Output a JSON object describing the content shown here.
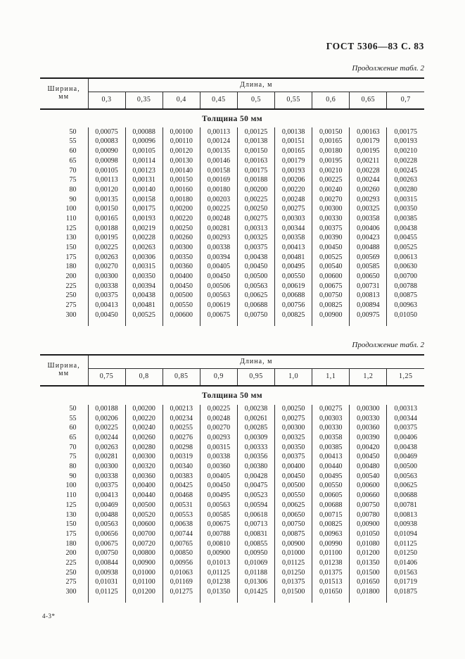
{
  "page": {
    "header_right": "ГОСТ 5306—83 С. 83",
    "footer_left": "4-3*"
  },
  "tables": [
    {
      "continuation": "Продолжение табл. 2",
      "corner_line1": "Ширина,",
      "corner_line2": "мм",
      "span_header": "Длина, м",
      "section_title": "Толщина 50 мм",
      "columns": [
        "0,3",
        "0,35",
        "0,4",
        "0,45",
        "0,5",
        "0,55",
        "0,6",
        "0,65",
        "0,7"
      ],
      "rows": [
        {
          "width": "50",
          "values": [
            "0,00075",
            "0,00088",
            "0,00100",
            "0,00113",
            "0,00125",
            "0,00138",
            "0,00150",
            "0,00163",
            "0,00175"
          ]
        },
        {
          "width": "55",
          "values": [
            "0,00083",
            "0,00096",
            "0,00110",
            "0,00124",
            "0,00138",
            "0,00151",
            "0,00165",
            "0,00179",
            "0,00193"
          ]
        },
        {
          "width": "60",
          "values": [
            "0,00090",
            "0,00105",
            "0,00120",
            "0,00135",
            "0,00150",
            "0,00165",
            "0,00180",
            "0,00195",
            "0,00210"
          ]
        },
        {
          "width": "65",
          "values": [
            "0,00098",
            "0,00114",
            "0,00130",
            "0,00146",
            "0,00163",
            "0,00179",
            "0,00195",
            "0,00211",
            "0,00228"
          ]
        },
        {
          "width": "70",
          "values": [
            "0,00105",
            "0,00123",
            "0,00140",
            "0,00158",
            "0,00175",
            "0,00193",
            "0,00210",
            "0,00228",
            "0,00245"
          ]
        },
        {
          "width": "75",
          "values": [
            "0,00113",
            "0,00131",
            "0,00150",
            "0,00169",
            "0,00188",
            "0,00206",
            "0,00225",
            "0,00244",
            "0,00263"
          ]
        },
        {
          "width": "80",
          "values": [
            "0,00120",
            "0,00140",
            "0,00160",
            "0,00180",
            "0,00200",
            "0,00220",
            "0,00240",
            "0,00260",
            "0,00280"
          ]
        },
        {
          "width": "90",
          "values": [
            "0,00135",
            "0,00158",
            "0,00180",
            "0,00203",
            "0,00225",
            "0,00248",
            "0,00270",
            "0,00293",
            "0,00315"
          ]
        },
        {
          "width": "100",
          "values": [
            "0,00150",
            "0,00175",
            "0,00200",
            "0,00225",
            "0,00250",
            "0,00275",
            "0,00300",
            "0,00325",
            "0,00350"
          ]
        },
        {
          "width": "110",
          "values": [
            "0,00165",
            "0,00193",
            "0,00220",
            "0,00248",
            "0,00275",
            "0,00303",
            "0,00330",
            "0,00358",
            "0,00385"
          ]
        },
        {
          "width": "125",
          "values": [
            "0,00188",
            "0,00219",
            "0,00250",
            "0,00281",
            "0,00313",
            "0,00344",
            "0,00375",
            "0,00406",
            "0,00438"
          ]
        },
        {
          "width": "130",
          "values": [
            "0,00195",
            "0,00228",
            "0,00260",
            "0,00293",
            "0,00325",
            "0,00358",
            "0,00390",
            "0,00423",
            "0,00455"
          ]
        },
        {
          "width": "150",
          "values": [
            "0,00225",
            "0,00263",
            "0,00300",
            "0,00338",
            "0,00375",
            "0,00413",
            "0,00450",
            "0,00488",
            "0,00525"
          ]
        },
        {
          "width": "175",
          "values": [
            "0,00263",
            "0,00306",
            "0,00350",
            "0,00394",
            "0,00438",
            "0,00481",
            "0,00525",
            "0,00569",
            "0,00613"
          ]
        },
        {
          "width": "180",
          "values": [
            "0,00270",
            "0,00315",
            "0,00360",
            "0,00405",
            "0,00450",
            "0,00495",
            "0,00540",
            "0,00585",
            "0,00630"
          ]
        },
        {
          "width": "200",
          "values": [
            "0,00300",
            "0,00350",
            "0,00400",
            "0,00450",
            "0,00500",
            "0,00550",
            "0,00600",
            "0,00650",
            "0,00700"
          ]
        },
        {
          "width": "225",
          "values": [
            "0,00338",
            "0,00394",
            "0,00450",
            "0,00506",
            "0,00563",
            "0,00619",
            "0,00675",
            "0,00731",
            "0,00788"
          ]
        },
        {
          "width": "250",
          "values": [
            "0,00375",
            "0,00438",
            "0,00500",
            "0,00563",
            "0,00625",
            "0,00688",
            "0,00750",
            "0,00813",
            "0,00875"
          ]
        },
        {
          "width": "275",
          "values": [
            "0,00413",
            "0,00481",
            "0,00550",
            "0,00619",
            "0,00688",
            "0,00756",
            "0,00825",
            "0,00894",
            "0,00963"
          ]
        },
        {
          "width": "300",
          "values": [
            "0,00450",
            "0,00525",
            "0,00600",
            "0,00675",
            "0,00750",
            "0,00825",
            "0,00900",
            "0,00975",
            "0,01050"
          ]
        }
      ]
    },
    {
      "continuation": "Продолжение табл. 2",
      "corner_line1": "Ширина,",
      "corner_line2": "мм",
      "span_header": "Длина, м",
      "section_title": "Толщина 50 мм",
      "columns": [
        "0,75",
        "0,8",
        "0,85",
        "0,9",
        "0,95",
        "1,0",
        "1,1",
        "1,2",
        "1,25"
      ],
      "rows": [
        {
          "width": "50",
          "values": [
            "0,00188",
            "0,00200",
            "0,00213",
            "0,00225",
            "0,00238",
            "0,00250",
            "0,00275",
            "0,00300",
            "0,00313"
          ]
        },
        {
          "width": "55",
          "values": [
            "0,00206",
            "0,00220",
            "0,00234",
            "0,00248",
            "0,00261",
            "0,00275",
            "0,00303",
            "0,00330",
            "0,00344"
          ]
        },
        {
          "width": "60",
          "values": [
            "0,00225",
            "0,00240",
            "0,00255",
            "0,00270",
            "0,00285",
            "0,00300",
            "0,00330",
            "0,00360",
            "0,00375"
          ]
        },
        {
          "width": "65",
          "values": [
            "0,00244",
            "0,00260",
            "0,00276",
            "0,00293",
            "0,00309",
            "0,00325",
            "0,00358",
            "0,00390",
            "0,00406"
          ]
        },
        {
          "width": "70",
          "values": [
            "0,00263",
            "0,00280",
            "0,00298",
            "0,00315",
            "0,00333",
            "0,00350",
            "0,00385",
            "0,00420",
            "0,00438"
          ]
        },
        {
          "width": "75",
          "values": [
            "0,00281",
            "0,00300",
            "0,00319",
            "0,00338",
            "0,00356",
            "0,00375",
            "0,00413",
            "0,00450",
            "0,00469"
          ]
        },
        {
          "width": "80",
          "values": [
            "0,00300",
            "0,00320",
            "0,00340",
            "0,00360",
            "0,00380",
            "0,00400",
            "0,00440",
            "0,00480",
            "0,00500"
          ]
        },
        {
          "width": "90",
          "values": [
            "0,00338",
            "0,00360",
            "0,00383",
            "0,00405",
            "0,00428",
            "0,00450",
            "0,00495",
            "0,00540",
            "0,00563"
          ]
        },
        {
          "width": "100",
          "values": [
            "0,00375",
            "0,00400",
            "0,00425",
            "0,00450",
            "0,00475",
            "0,00500",
            "0,00550",
            "0,00600",
            "0,00625"
          ]
        },
        {
          "width": "110",
          "values": [
            "0,00413",
            "0,00440",
            "0,00468",
            "0,00495",
            "0,00523",
            "0,00550",
            "0,00605",
            "0,00660",
            "0,00688"
          ]
        },
        {
          "width": "125",
          "values": [
            "0,00469",
            "0,00500",
            "0,00531",
            "0,00563",
            "0,00594",
            "0,00625",
            "0,00688",
            "0,00750",
            "0,00781"
          ]
        },
        {
          "width": "130",
          "values": [
            "0,00488",
            "0,00520",
            "0,00553",
            "0,00585",
            "0,00618",
            "0,00650",
            "0,00715",
            "0,00780",
            "0,00813"
          ]
        },
        {
          "width": "150",
          "values": [
            "0,00563",
            "0,00600",
            "0,00638",
            "0,00675",
            "0,00713",
            "0,00750",
            "0,00825",
            "0,00900",
            "0,00938"
          ]
        },
        {
          "width": "175",
          "values": [
            "0,00656",
            "0,00700",
            "0,00744",
            "0,00788",
            "0,00831",
            "0,00875",
            "0,00963",
            "0,01050",
            "0,01094"
          ]
        },
        {
          "width": "180",
          "values": [
            "0,00675",
            "0,00720",
            "0,00765",
            "0,00810",
            "0,00855",
            "0,00900",
            "0,00990",
            "0,01080",
            "0,01125"
          ]
        },
        {
          "width": "200",
          "values": [
            "0,00750",
            "0,00800",
            "0,00850",
            "0,00900",
            "0,00950",
            "0,01000",
            "0,01100",
            "0,01200",
            "0,01250"
          ]
        },
        {
          "width": "225",
          "values": [
            "0,00844",
            "0,00900",
            "0,00956",
            "0,01013",
            "0,01069",
            "0,01125",
            "0,01238",
            "0,01350",
            "0,01406"
          ]
        },
        {
          "width": "250",
          "values": [
            "0,00938",
            "0,01000",
            "0,01063",
            "0,01125",
            "0,01188",
            "0,01250",
            "0,01375",
            "0,01500",
            "0,01563"
          ]
        },
        {
          "width": "275",
          "values": [
            "0,01031",
            "0,01100",
            "0,01169",
            "0,01238",
            "0,01306",
            "0,01375",
            "0,01513",
            "0,01650",
            "0,01719"
          ]
        },
        {
          "width": "300",
          "values": [
            "0,01125",
            "0,01200",
            "0,01275",
            "0,01350",
            "0,01425",
            "0,01500",
            "0,01650",
            "0,01800",
            "0,01875"
          ]
        }
      ]
    }
  ]
}
